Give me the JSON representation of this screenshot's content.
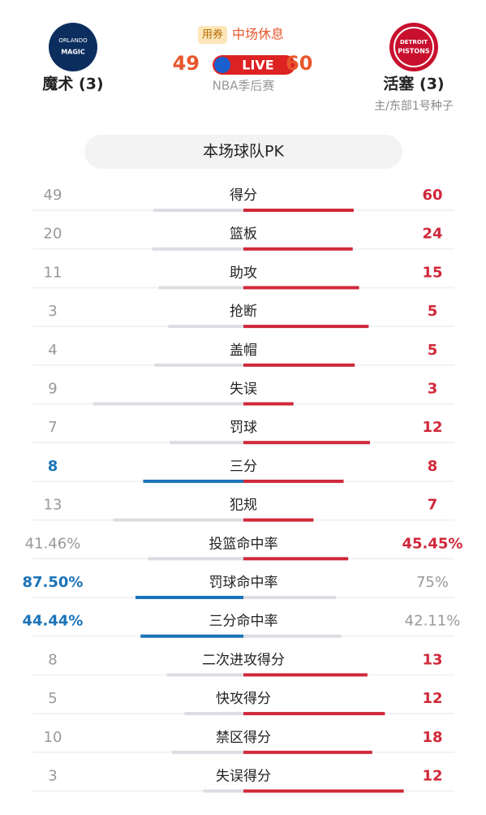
{
  "header": {
    "coupon": "用券",
    "status": "中场休息",
    "league": "NBA季后赛",
    "live": "LIVE",
    "home": {
      "name": "魔术 (3)",
      "score": 49,
      "logo_top": "ORLANDO",
      "logo_bottom": "MAGIC"
    },
    "away": {
      "name": "活塞 (3)",
      "score": 60,
      "seed": "主/东部1号种子",
      "logo_top": "DETROIT",
      "logo_bottom": "PISTONS"
    }
  },
  "section_title": "本场球队PK",
  "stats": [
    {
      "label": "得分",
      "home": 49,
      "away": 60,
      "lead": "away"
    },
    {
      "label": "篮板",
      "home": 20,
      "away": 24,
      "lead": "away"
    },
    {
      "label": "助攻",
      "home": 11,
      "away": 15,
      "lead": "away"
    },
    {
      "label": "抢断",
      "home": 3,
      "away": 5,
      "lead": "away"
    },
    {
      "label": "盖帽",
      "home": 4,
      "away": 5,
      "lead": "away"
    },
    {
      "label": "失误",
      "home": 9,
      "away": 3,
      "lead": "away"
    },
    {
      "label": "罚球",
      "home": 7,
      "away": 12,
      "lead": "away"
    },
    {
      "label": "三分",
      "home": 8,
      "away": 8,
      "lead": "both"
    },
    {
      "label": "犯规",
      "home": 13,
      "away": 7,
      "lead": "away"
    },
    {
      "label": "投篮命中率",
      "home": {
        "value": 41.46,
        "label": "41.46%"
      },
      "away": {
        "value": 45.45,
        "label": "45.45%"
      },
      "lead": "away"
    },
    {
      "label": "罚球命中率",
      "home": {
        "value": 87.5,
        "label": "87.50%"
      },
      "away": {
        "value": 75,
        "label": "75%"
      },
      "lead": "home"
    },
    {
      "label": "三分命中率",
      "home": {
        "value": 44.44,
        "label": "44.44%"
      },
      "away": {
        "value": 42.11,
        "label": "42.11%"
      },
      "lead": "home"
    },
    {
      "label": "二次进攻得分",
      "home": 8,
      "away": 13,
      "lead": "away"
    },
    {
      "label": "快攻得分",
      "home": 5,
      "away": 12,
      "lead": "away"
    },
    {
      "label": "禁区得分",
      "home": 10,
      "away": 18,
      "lead": "away"
    },
    {
      "label": "失误得分",
      "home": 3,
      "away": 12,
      "lead": "away"
    }
  ]
}
